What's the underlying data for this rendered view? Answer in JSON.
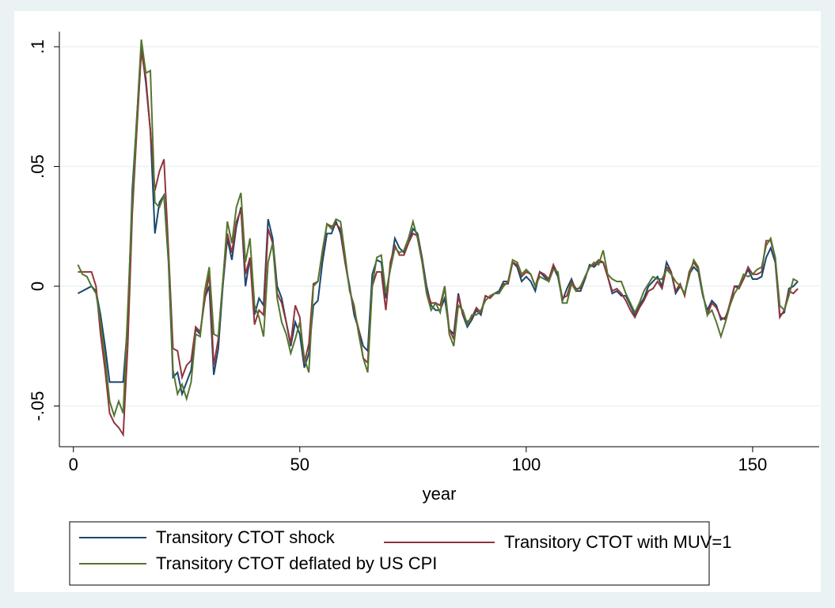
{
  "chart_data": {
    "type": "line",
    "x_label": "year",
    "x": [
      1,
      2,
      3,
      4,
      5,
      6,
      7,
      8,
      9,
      10,
      11,
      12,
      13,
      14,
      15,
      16,
      17,
      18,
      19,
      20,
      21,
      22,
      23,
      24,
      25,
      26,
      27,
      28,
      29,
      30,
      31,
      32,
      33,
      34,
      35,
      36,
      37,
      38,
      39,
      40,
      41,
      42,
      43,
      44,
      45,
      46,
      47,
      48,
      49,
      50,
      51,
      52,
      53,
      54,
      55,
      56,
      57,
      58,
      59,
      60,
      61,
      62,
      63,
      64,
      65,
      66,
      67,
      68,
      69,
      70,
      71,
      72,
      73,
      74,
      75,
      76,
      77,
      78,
      79,
      80,
      81,
      82,
      83,
      84,
      85,
      86,
      87,
      88,
      89,
      90,
      91,
      92,
      93,
      94,
      95,
      96,
      97,
      98,
      99,
      100,
      101,
      102,
      103,
      104,
      105,
      106,
      107,
      108,
      109,
      110,
      111,
      112,
      113,
      114,
      115,
      116,
      117,
      118,
      119,
      120,
      121,
      122,
      123,
      124,
      125,
      126,
      127,
      128,
      129,
      130,
      131,
      132,
      133,
      134,
      135,
      136,
      137,
      138,
      139,
      140,
      141,
      142,
      143,
      144,
      145,
      146,
      147,
      148,
      149,
      150,
      151,
      152,
      153,
      154,
      155,
      156,
      157,
      158,
      159,
      160
    ],
    "series": [
      {
        "name": "Transitory CTOT shock",
        "color": "#1a476f",
        "values": [
          -0.003,
          -0.002,
          -0.001,
          0.0,
          -0.002,
          -0.012,
          -0.025,
          -0.04,
          -0.04,
          -0.04,
          -0.04,
          -0.015,
          0.04,
          0.07,
          0.1,
          0.085,
          0.065,
          0.022,
          0.035,
          0.038,
          0.01,
          -0.038,
          -0.036,
          -0.045,
          -0.04,
          -0.035,
          -0.018,
          -0.02,
          -0.005,
          0.0,
          -0.037,
          -0.026,
          0.0,
          0.02,
          0.011,
          0.025,
          0.033,
          0.0,
          0.012,
          -0.012,
          -0.005,
          -0.008,
          0.028,
          0.02,
          0.0,
          -0.005,
          -0.015,
          -0.025,
          -0.015,
          -0.02,
          -0.034,
          -0.028,
          -0.008,
          -0.006,
          0.01,
          0.022,
          0.022,
          0.027,
          0.022,
          0.01,
          0.0,
          -0.012,
          -0.018,
          -0.025,
          -0.027,
          0.005,
          0.011,
          0.01,
          -0.005,
          0.008,
          0.02,
          0.016,
          0.014,
          0.018,
          0.024,
          0.022,
          0.012,
          0.0,
          -0.008,
          -0.01,
          -0.01,
          -0.005,
          -0.018,
          -0.02,
          -0.003,
          -0.012,
          -0.017,
          -0.014,
          -0.01,
          -0.012,
          -0.004,
          -0.005,
          -0.003,
          -0.002,
          0.002,
          0.002,
          0.01,
          0.008,
          0.002,
          0.004,
          0.002,
          -0.002,
          0.006,
          0.004,
          0.002,
          0.008,
          0.004,
          -0.006,
          -0.001,
          0.003,
          -0.002,
          -0.002,
          0.003,
          0.009,
          0.008,
          0.01,
          0.01,
          0.004,
          -0.003,
          -0.002,
          -0.004,
          -0.004,
          -0.008,
          -0.012,
          -0.008,
          -0.005,
          0.0,
          0.002,
          0.004,
          0.0,
          0.01,
          0.006,
          -0.003,
          0.0,
          -0.003,
          0.005,
          0.008,
          0.006,
          -0.004,
          -0.01,
          -0.006,
          -0.008,
          -0.014,
          -0.013,
          -0.008,
          0.0,
          0.0,
          0.003,
          0.007,
          0.003,
          0.003,
          0.004,
          0.012,
          0.016,
          0.01,
          -0.012,
          -0.011,
          -0.001,
          0.0,
          0.002
        ]
      },
      {
        "name": "Transitory CTOT with MUV=1",
        "color": "#90353b",
        "values": [
          0.006,
          0.006,
          0.006,
          0.006,
          0.0,
          -0.02,
          -0.035,
          -0.053,
          -0.057,
          -0.059,
          -0.062,
          -0.025,
          0.03,
          0.065,
          0.098,
          0.087,
          0.065,
          0.04,
          0.048,
          0.053,
          0.015,
          -0.026,
          -0.027,
          -0.038,
          -0.033,
          -0.031,
          -0.017,
          -0.019,
          -0.006,
          0.005,
          -0.033,
          -0.022,
          0.002,
          0.022,
          0.014,
          0.027,
          0.032,
          0.005,
          0.012,
          -0.016,
          -0.01,
          -0.012,
          0.024,
          0.018,
          -0.003,
          -0.007,
          -0.015,
          -0.024,
          -0.008,
          -0.013,
          -0.032,
          -0.024,
          0.001,
          0.002,
          0.014,
          0.026,
          0.025,
          0.026,
          0.024,
          0.01,
          -0.001,
          -0.01,
          -0.018,
          -0.03,
          -0.032,
          0.0,
          0.006,
          0.006,
          -0.01,
          0.01,
          0.017,
          0.013,
          0.013,
          0.018,
          0.022,
          0.021,
          0.011,
          -0.002,
          -0.007,
          -0.007,
          -0.008,
          0.0,
          -0.018,
          -0.022,
          -0.004,
          -0.012,
          -0.015,
          -0.013,
          -0.009,
          -0.011,
          -0.004,
          -0.005,
          -0.003,
          -0.003,
          0.001,
          0.001,
          0.01,
          0.009,
          0.004,
          0.006,
          0.005,
          0.0,
          0.006,
          0.005,
          0.003,
          0.009,
          0.005,
          -0.005,
          -0.004,
          0.002,
          -0.001,
          -0.001,
          0.004,
          0.008,
          0.009,
          0.011,
          0.01,
          0.004,
          -0.002,
          -0.001,
          -0.003,
          -0.006,
          -0.01,
          -0.013,
          -0.009,
          -0.006,
          -0.002,
          -0.001,
          0.002,
          -0.001,
          0.008,
          0.006,
          -0.002,
          0.001,
          -0.004,
          0.006,
          0.01,
          0.007,
          -0.003,
          -0.012,
          -0.007,
          -0.009,
          -0.013,
          -0.014,
          -0.007,
          0.0,
          -0.001,
          0.003,
          0.008,
          0.005,
          0.005,
          0.006,
          0.019,
          0.019,
          0.012,
          -0.013,
          -0.01,
          -0.002,
          -0.003,
          -0.001
        ]
      },
      {
        "name": "Transitory CTOT deflated by US CPI",
        "color": "#55752f",
        "values": [
          0.009,
          0.005,
          0.004,
          0.0,
          -0.003,
          -0.015,
          -0.03,
          -0.048,
          -0.054,
          -0.048,
          -0.053,
          -0.01,
          0.035,
          0.07,
          0.103,
          0.089,
          0.09,
          0.035,
          0.033,
          0.038,
          0.012,
          -0.035,
          -0.045,
          -0.041,
          -0.047,
          -0.04,
          -0.02,
          -0.021,
          -0.002,
          0.008,
          -0.02,
          -0.021,
          0.002,
          0.027,
          0.018,
          0.033,
          0.039,
          0.01,
          0.02,
          -0.008,
          -0.013,
          -0.021,
          0.01,
          0.018,
          -0.005,
          -0.015,
          -0.02,
          -0.028,
          -0.022,
          -0.015,
          -0.03,
          -0.036,
          0.0,
          0.002,
          0.015,
          0.026,
          0.024,
          0.028,
          0.027,
          0.013,
          -0.002,
          -0.008,
          -0.02,
          -0.03,
          -0.036,
          0.0,
          0.012,
          0.013,
          -0.003,
          0.007,
          0.016,
          0.014,
          0.015,
          0.02,
          0.027,
          0.02,
          0.01,
          -0.003,
          -0.01,
          -0.007,
          -0.011,
          0.0,
          -0.02,
          -0.025,
          -0.008,
          -0.01,
          -0.016,
          -0.012,
          -0.012,
          -0.01,
          -0.006,
          -0.004,
          -0.003,
          -0.003,
          0.0,
          0.002,
          0.011,
          0.01,
          0.005,
          0.007,
          0.005,
          0.0,
          0.004,
          0.003,
          0.002,
          0.007,
          0.006,
          -0.007,
          -0.007,
          0.001,
          -0.002,
          0.0,
          0.004,
          0.008,
          0.01,
          0.009,
          0.015,
          0.005,
          0.003,
          0.002,
          0.002,
          -0.003,
          -0.007,
          -0.011,
          -0.007,
          -0.002,
          0.001,
          0.004,
          0.003,
          0.003,
          0.007,
          0.005,
          0.002,
          0.0,
          -0.003,
          0.004,
          0.011,
          0.008,
          -0.003,
          -0.012,
          -0.01,
          -0.015,
          -0.021,
          -0.015,
          -0.008,
          -0.003,
          0.0,
          0.005,
          0.004,
          0.005,
          0.007,
          0.008,
          0.017,
          0.02,
          0.012,
          -0.008,
          -0.01,
          -0.004,
          0.003,
          0.002
        ]
      }
    ],
    "xlim": [
      -3.1,
      164.7
    ],
    "ylim": [
      -0.067,
      0.1063
    ],
    "xticks": [
      0,
      50,
      100,
      150
    ],
    "yticks": [
      {
        "value": -0.05,
        "label": "-.05"
      },
      0,
      {
        "value": 0.05,
        "label": ".05"
      },
      {
        "value": 0.1,
        "label": ".1"
      }
    ],
    "grid": true
  }
}
